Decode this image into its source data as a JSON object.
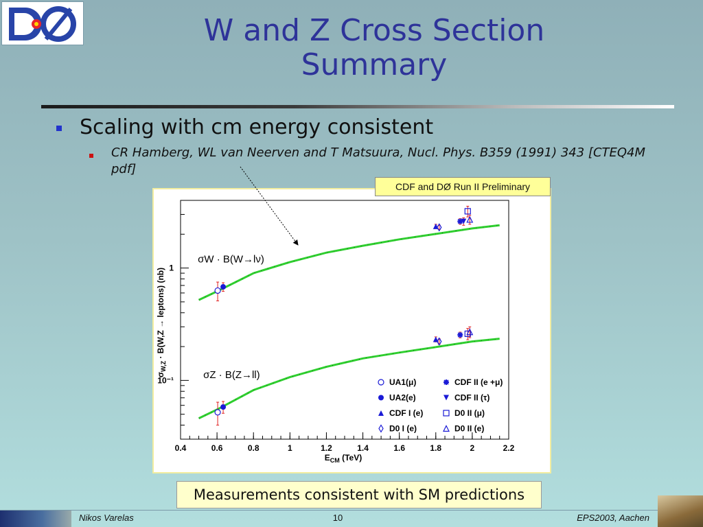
{
  "title": [
    "W and Z Cross Section",
    "Summary"
  ],
  "logo_text": "DØ",
  "bullets": {
    "main": "Scaling with cm energy consistent",
    "sub": "CR Hamberg, WL van Neerven and T Matsuura, Nucl. Phys. B359 (1991) 343 [CTEQ4M pdf]"
  },
  "prelim_label": "CDF and DØ Run II Preliminary",
  "conclusion": "Measurements consistent with SM predictions",
  "footer": {
    "author": "Nikos Varelas",
    "page": "10",
    "conference": "EPS2003, Aachen"
  },
  "colors": {
    "title": "#2e3399",
    "theory": "#2fcf2f",
    "marker": "#1a1ad6",
    "error": "#e02020"
  },
  "chart_data": {
    "type": "scatter",
    "xlabel": "E_CM (TeV)",
    "ylabel": "σ_W,Z · B(W,Z → leptons) (nb)",
    "xlim": [
      0.4,
      2.2
    ],
    "ylim": [
      0.03,
      4
    ],
    "log_y": true,
    "x_ticks": [
      "0.4",
      "0.6",
      "0.8",
      "1",
      "1.2",
      "1.4",
      "1.6",
      "1.8",
      "2",
      "2.2"
    ],
    "y_ticks": [
      {
        "value": 1,
        "label": "1"
      },
      {
        "value": 0.1,
        "label": "10⁻¹"
      }
    ],
    "series_labels": [
      {
        "text": "σW · B(W→lν)",
        "x": 0.6,
        "y": 1.12
      },
      {
        "text": "σZ · B(Z→ll)",
        "x": 0.63,
        "y": 0.105
      }
    ],
    "theory_W": {
      "x": [
        0.5,
        0.6,
        0.8,
        1.0,
        1.2,
        1.4,
        1.6,
        1.8,
        2.0,
        2.15
      ],
      "y": [
        0.52,
        0.62,
        0.9,
        1.13,
        1.37,
        1.58,
        1.8,
        2.01,
        2.25,
        2.4
      ]
    },
    "theory_Z": {
      "x": [
        0.5,
        0.6,
        0.8,
        1.0,
        1.2,
        1.4,
        1.6,
        1.8,
        2.0,
        2.15
      ],
      "y": [
        0.046,
        0.055,
        0.082,
        0.107,
        0.132,
        0.157,
        0.177,
        0.198,
        0.222,
        0.235
      ]
    },
    "legend": [
      "UA1(μ)",
      "UA2(e)",
      "CDF I (e)",
      "D0 I (e)",
      "CDF II (e +μ)",
      "CDF II (τ)",
      "D0 II (μ)",
      "D0 II (e)"
    ],
    "points": [
      {
        "name": "UA1(μ)",
        "marker": "open-circle",
        "x": [
          0.63,
          0.63
        ],
        "y": [
          0.63,
          0.052
        ],
        "err": [
          0.12,
          0.012
        ]
      },
      {
        "name": "UA2(e)",
        "marker": "filled-circle",
        "x": [
          0.63,
          0.63
        ],
        "y": [
          0.68,
          0.058
        ],
        "err": [
          0.06,
          0.007
        ]
      },
      {
        "name": "CDF I (e)",
        "marker": "filled-triangle",
        "x": [
          1.8,
          1.8
        ],
        "y": [
          2.35,
          0.232
        ],
        "err": [
          0.1,
          0.012
        ]
      },
      {
        "name": "D0 I (e)",
        "marker": "open-diamond",
        "x": [
          1.8,
          1.8
        ],
        "y": [
          2.3,
          0.222
        ],
        "err": [
          0.1,
          0.012
        ]
      },
      {
        "name": "CDF II (e +μ)",
        "marker": "star",
        "x": [
          1.96,
          1.96
        ],
        "y": [
          2.6,
          0.254
        ],
        "err": [
          0.15,
          0.015
        ]
      },
      {
        "name": "CDF II (τ)",
        "marker": "filled-triangle-down",
        "x": [
          1.96
        ],
        "y": [
          2.6
        ],
        "err": [
          0.2
        ]
      },
      {
        "name": "D0 II (μ)",
        "marker": "open-square",
        "x": [
          1.96,
          1.96
        ],
        "y": [
          3.2,
          0.26
        ],
        "err": [
          0.35,
          0.03
        ]
      },
      {
        "name": "D0 II (e)",
        "marker": "open-triangle",
        "x": [
          1.96,
          1.96
        ],
        "y": [
          2.7,
          0.27
        ],
        "err": [
          0.25,
          0.03
        ]
      }
    ]
  }
}
